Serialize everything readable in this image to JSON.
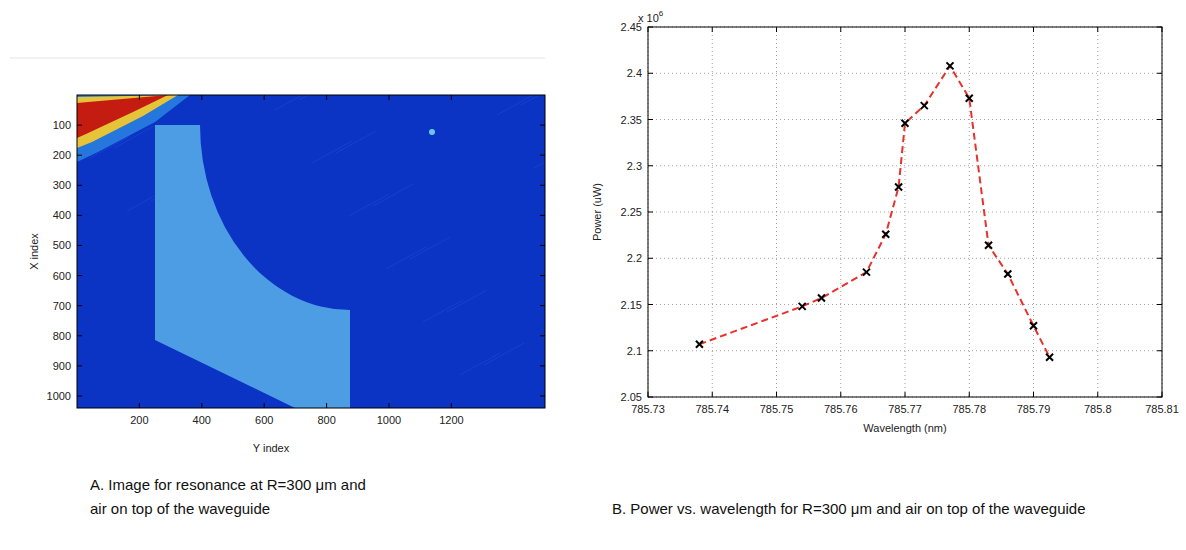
{
  "chart_data": [
    {
      "type": "image",
      "caption": "A. Image for resonance at R=300 μm and air on top of the waveguide",
      "x_label": "Y index",
      "y_label": "X index",
      "xlim": [
        0,
        1500
      ],
      "ylim": [
        1040,
        0
      ],
      "xticks": [
        200,
        400,
        600,
        800,
        1000,
        1200
      ],
      "yticks": [
        100,
        200,
        300,
        400,
        500,
        600,
        700,
        800,
        900,
        1000
      ],
      "grid": false
    },
    {
      "type": "line",
      "caption": "B. Power vs. wavelength for R=300 μm and air on top of the waveguide",
      "x_label": "Wavelength (nm)",
      "y_label": "Power (uW)",
      "annotations": [
        {
          "text": "x 10",
          "superscript": "6"
        }
      ],
      "x": [
        785.738,
        785.754,
        785.757,
        785.764,
        785.767,
        785.769,
        785.77,
        785.773,
        785.777,
        785.78,
        785.783,
        785.786,
        785.79,
        785.7925
      ],
      "values": [
        2.107,
        2.148,
        2.157,
        2.185,
        2.226,
        2.277,
        2.346,
        2.365,
        2.408,
        2.373,
        2.214,
        2.183,
        2.127,
        2.093
      ],
      "color": "#e8312a",
      "marker": "x",
      "line_style": "dashed",
      "xlim": [
        785.73,
        785.81
      ],
      "xticks": [
        785.73,
        785.74,
        785.75,
        785.76,
        785.77,
        785.78,
        785.79,
        785.8,
        785.81
      ],
      "ylim": [
        2.05,
        2.45
      ],
      "yticks": [
        2.05,
        2.1,
        2.15,
        2.2,
        2.25,
        2.3,
        2.35,
        2.4,
        2.45
      ],
      "grid": true
    }
  ]
}
